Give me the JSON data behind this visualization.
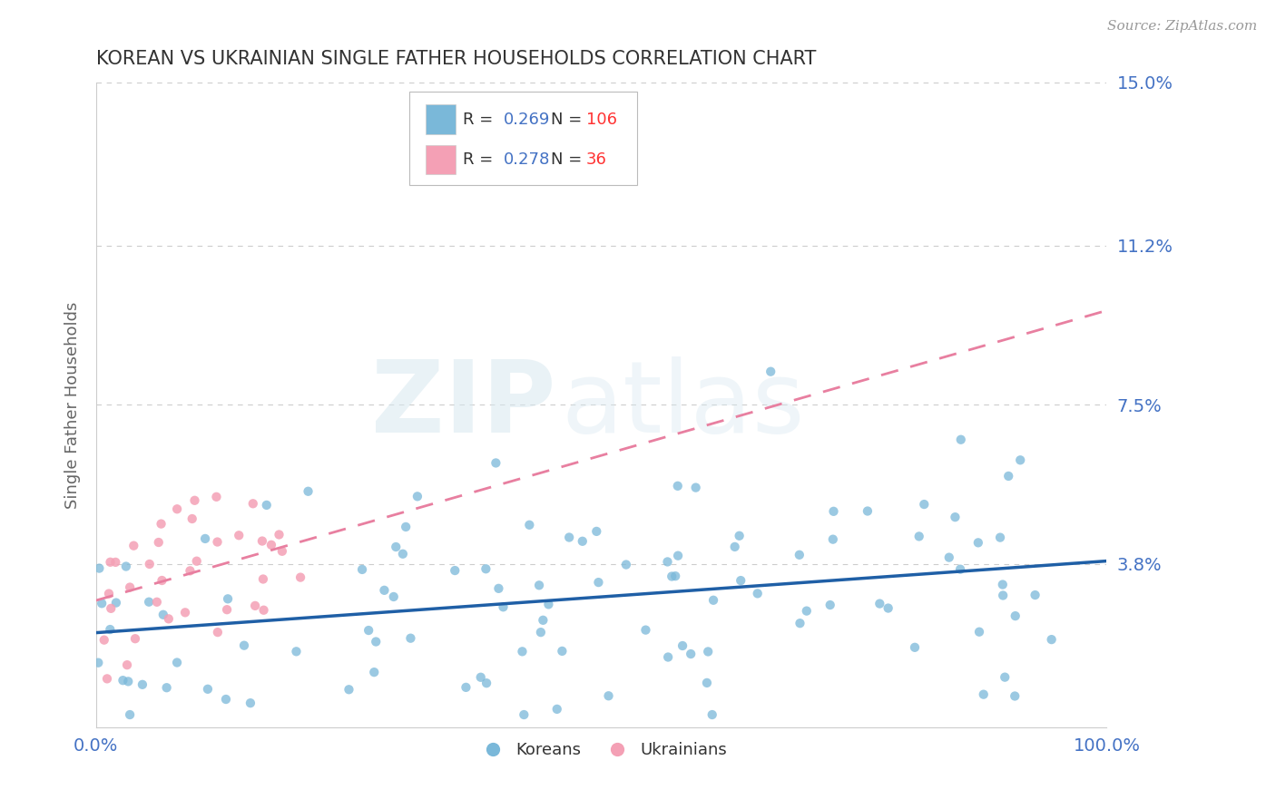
{
  "title": "KOREAN VS UKRAINIAN SINGLE FATHER HOUSEHOLDS CORRELATION CHART",
  "source": "Source: ZipAtlas.com",
  "ylabel": "Single Father Households",
  "xlim": [
    0,
    100
  ],
  "ylim": [
    0,
    15
  ],
  "ytick_vals": [
    3.8,
    7.5,
    11.2,
    15.0
  ],
  "ytick_labels": [
    "3.8%",
    "7.5%",
    "11.2%",
    "15.0%"
  ],
  "xtick_vals": [
    0,
    100
  ],
  "xtick_labels": [
    "0.0%",
    "100.0%"
  ],
  "korean_color": "#7ab8d9",
  "ukrainian_color": "#f4a0b5",
  "korean_line_color": "#1f5fa6",
  "ukrainian_line_color": "#e87fa0",
  "R_korean": 0.269,
  "N_korean": 106,
  "R_ukrainian": 0.278,
  "N_ukrainian": 36,
  "watermark_zip": "ZIP",
  "watermark_atlas": "atlas",
  "background_color": "#ffffff",
  "grid_color": "#cccccc",
  "title_color": "#333333",
  "axis_label_color": "#666666",
  "tick_color": "#4472c4",
  "legend_R_color": "#4472c4",
  "legend_N_color": "#ff3333",
  "seed_korean": 12,
  "seed_ukrainian": 77
}
